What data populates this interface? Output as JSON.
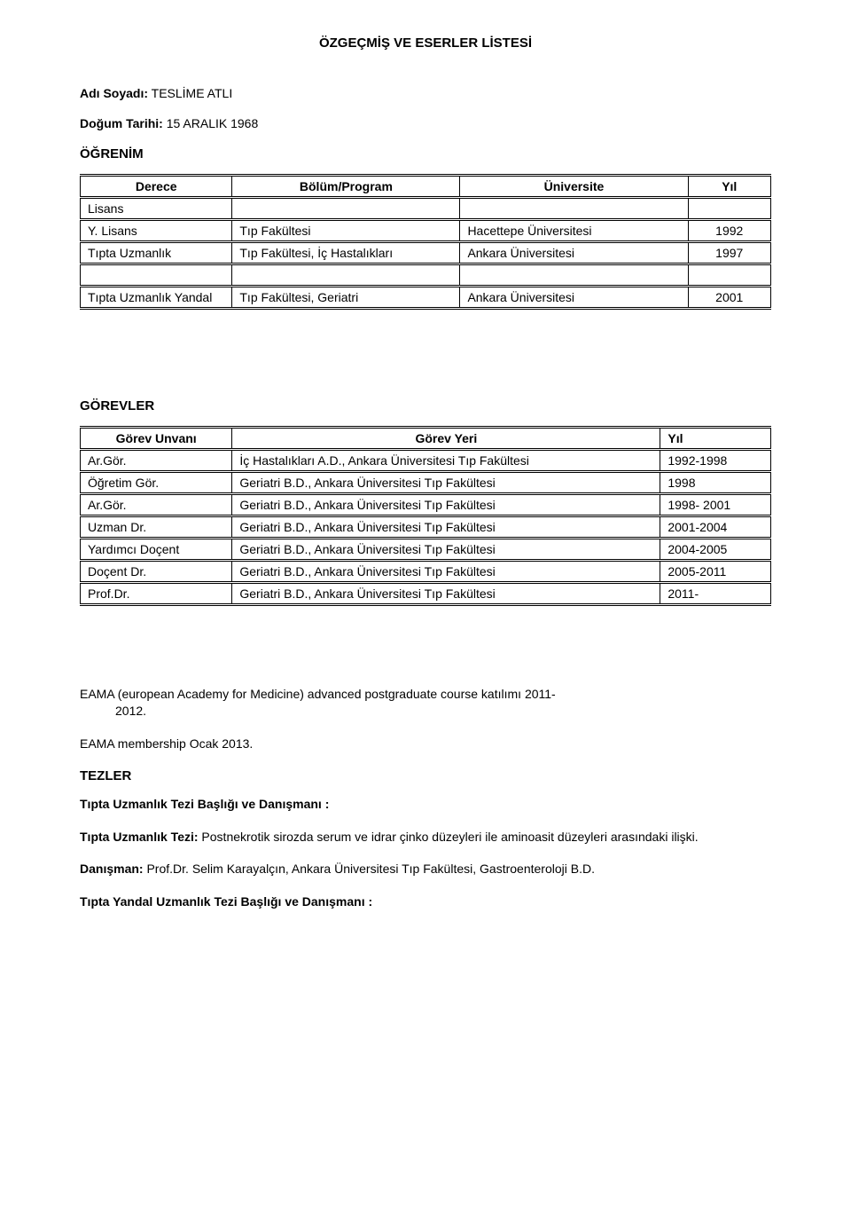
{
  "document": {
    "title": "ÖZGEÇMİŞ VE ESERLER LİSTESİ",
    "name_label": "Adı Soyadı:",
    "name_value": "TESLİME ATLI",
    "dob_label": "Doğum Tarihi:",
    "dob_value": "15 ARALIK 1968",
    "education_heading": "ÖĞRENİM",
    "education_headers": {
      "degree": "Derece",
      "program": "Bölüm/Program",
      "university": "Üniversite",
      "year": "Yıl"
    },
    "education_rows": [
      {
        "degree": "Lisans",
        "program": "",
        "university": "",
        "year": ""
      },
      {
        "degree": "Y. Lisans",
        "program": "Tıp Fakültesi",
        "university": "Hacettepe  Üniversitesi",
        "year": "1992"
      },
      {
        "degree": "Tıpta Uzmanlık",
        "program": "Tıp Fakültesi, İç Hastalıkları",
        "university": "Ankara Üniversitesi",
        "year": "1997"
      },
      {
        "degree": "",
        "program": "",
        "university": "",
        "year": ""
      },
      {
        "degree": "Tıpta Uzmanlık Yandal",
        "program": "Tıp Fakültesi, Geriatri",
        "university": "Ankara Üniversitesi",
        "year": "2001"
      }
    ],
    "positions_heading": "GÖREVLER",
    "positions_headers": {
      "title": "Görev Unvanı",
      "place": "Görev Yeri",
      "year": "Yıl"
    },
    "positions_rows": [
      {
        "title": "Ar.Gör.",
        "place": "İç Hastalıkları A.D., Ankara Üniversitesi Tıp Fakültesi",
        "year": "1992-1998"
      },
      {
        "title": "Öğretim Gör.",
        "place": "Geriatri B.D., Ankara Üniversitesi Tıp Fakültesi",
        "year": "1998"
      },
      {
        "title": "Ar.Gör.",
        "place": "Geriatri B.D., Ankara Üniversitesi Tıp Fakültesi",
        "year": "1998- 2001"
      },
      {
        "title": "Uzman Dr.",
        "place": "Geriatri B.D., Ankara Üniversitesi Tıp Fakültesi",
        "year": "2001-2004"
      },
      {
        "title": "Yardımcı Doçent",
        "place": "Geriatri B.D., Ankara Üniversitesi Tıp Fakültesi",
        "year": "2004-2005"
      },
      {
        "title": "Doçent Dr.",
        "place": "Geriatri B.D., Ankara Üniversitesi Tıp Fakültesi",
        "year": "2005-2011"
      },
      {
        "title": "Prof.Dr.",
        "place": "Geriatri B.D., Ankara Üniversitesi Tıp Fakültesi",
        "year": "2011-"
      }
    ],
    "eama_line1_prefix": "EAMA (european Academy for Medicine) advanced postgraduate course katılımı ",
    "eama_line1_bold": "2011-",
    "eama_line1_cont": "2012.",
    "eama_line2": "EAMA membership Ocak  2013.",
    "tezler_heading": "TEZLER",
    "tez1_heading": "Tıpta Uzmanlık Tezi Başlığı ve  Danışmanı :",
    "tez1_label": "Tıpta Uzmanlık Tezi:",
    "tez1_text": " Postnekrotik sirozda serum ve idrar çinko düzeyleri ile aminoasit düzeyleri arasındaki ilişki.",
    "advisor_label": "Danışman:",
    "advisor_text": " Prof.Dr. Selim Karayalçın, Ankara Üniversitesi Tıp Fakültesi, Gastroenteroloji B.D.",
    "tez2_heading": "Tıpta Yandal Uzmanlık Tezi Başlığı ve  Danışmanı :"
  }
}
